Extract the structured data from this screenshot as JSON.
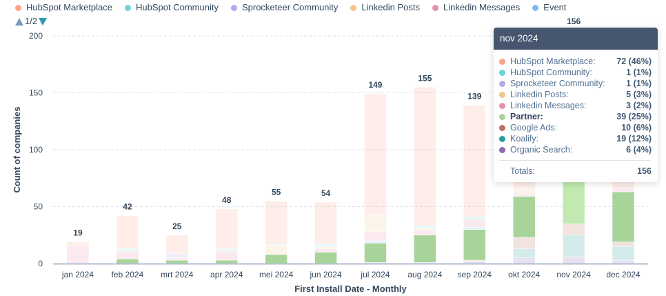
{
  "legend": {
    "items": [
      {
        "label": "HubSpot Marketplace",
        "color": "#f8a58c"
      },
      {
        "label": "HubSpot Community",
        "color": "#6ad5dc"
      },
      {
        "label": "Sprocketeer Community",
        "color": "#b9a7e8"
      },
      {
        "label": "Linkedin Posts",
        "color": "#f2c68c"
      },
      {
        "label": "Linkedin Messages",
        "color": "#e88fb0"
      },
      {
        "label": "Event",
        "color": "#7fb8f5"
      }
    ],
    "page": "1/2"
  },
  "tooltip": {
    "title": "nov 2024",
    "rows": [
      {
        "label": "HubSpot Marketplace:",
        "value": "72 (46%)",
        "color": "#f8a58c"
      },
      {
        "label": "HubSpot Community:",
        "value": "1 (1%)",
        "color": "#6ad5dc"
      },
      {
        "label": "Sprocketeer Community:",
        "value": "1 (1%)",
        "color": "#b9a7e8"
      },
      {
        "label": "Linkedin Posts:",
        "value": "5 (3%)",
        "color": "#f2c68c"
      },
      {
        "label": "Linkedin Messages:",
        "value": "3 (2%)",
        "color": "#e88fb0"
      },
      {
        "label": "Partner:",
        "value": "39 (25%)",
        "color": "#a8d49a",
        "bold": true
      },
      {
        "label": "Google Ads:",
        "value": "10 (6%)",
        "color": "#b9715c"
      },
      {
        "label": "Koalify:",
        "value": "19 (12%)",
        "color": "#2a9a9e"
      },
      {
        "label": "Organic Search:",
        "value": "6 (4%)",
        "color": "#8a6bb0"
      }
    ],
    "totals_label": "Totals:",
    "totals_value": "156"
  },
  "chart_data": {
    "type": "bar",
    "stacked": true,
    "xlabel": "First Install Date - Monthly",
    "ylabel": "Count of companies",
    "ylim": [
      0,
      200
    ],
    "yticks": [
      0,
      50,
      100,
      150,
      200
    ],
    "grid": true,
    "legend_position": "top",
    "highlighted_series": "Partner",
    "hovered_category": "nov 2024",
    "categories": [
      "jan 2024",
      "feb 2024",
      "mrt 2024",
      "apr 2024",
      "mei 2024",
      "jun 2024",
      "jul 2024",
      "aug 2024",
      "sep 2024",
      "okt 2024",
      "nov 2024",
      "dec 2024"
    ],
    "totals": [
      19,
      42,
      25,
      48,
      55,
      54,
      149,
      155,
      139,
      null,
      156,
      null
    ],
    "series": [
      {
        "name": "Organic Search",
        "color": "#8a6bb0",
        "values": [
          0,
          0,
          0,
          0,
          0,
          0,
          1,
          1,
          2,
          5,
          6,
          3
        ]
      },
      {
        "name": "Koalify",
        "color": "#2a9a9e",
        "values": [
          0,
          0,
          0,
          0,
          0,
          0,
          0,
          0,
          0,
          8,
          19,
          12
        ]
      },
      {
        "name": "Google Ads",
        "color": "#b9715c",
        "values": [
          0,
          0,
          0,
          0,
          0,
          0,
          0,
          0,
          1,
          10,
          10,
          4
        ]
      },
      {
        "name": "Partner",
        "color": "#a8d49a",
        "values": [
          0,
          4,
          3,
          3,
          8,
          10,
          17,
          24,
          27,
          36,
          39,
          44
        ]
      },
      {
        "name": "Event",
        "color": "#7fb8f5",
        "values": [
          0,
          0,
          0,
          0,
          0,
          0,
          2,
          0,
          2,
          0,
          0,
          0
        ]
      },
      {
        "name": "Linkedin Messages",
        "color": "#e88fb0",
        "values": [
          16,
          7,
          2,
          8,
          0,
          3,
          8,
          4,
          7,
          2,
          3,
          3
        ]
      },
      {
        "name": "Linkedin Posts",
        "color": "#f2c68c",
        "values": [
          0,
          0,
          0,
          0,
          8,
          2,
          15,
          2,
          0,
          6,
          5,
          0
        ]
      },
      {
        "name": "Sprocketeer Community",
        "color": "#b9a7e8",
        "values": [
          0,
          0,
          4,
          0,
          0,
          0,
          0,
          0,
          0,
          0,
          1,
          0
        ]
      },
      {
        "name": "HubSpot Community",
        "color": "#6ad5dc",
        "values": [
          0,
          2,
          0,
          2,
          1,
          2,
          0,
          2,
          2,
          0,
          1,
          0
        ]
      },
      {
        "name": "HubSpot Marketplace",
        "color": "#f8a58c",
        "values": [
          3,
          29,
          16,
          35,
          38,
          37,
          106,
          122,
          98,
          50,
          72,
          60
        ]
      }
    ]
  }
}
